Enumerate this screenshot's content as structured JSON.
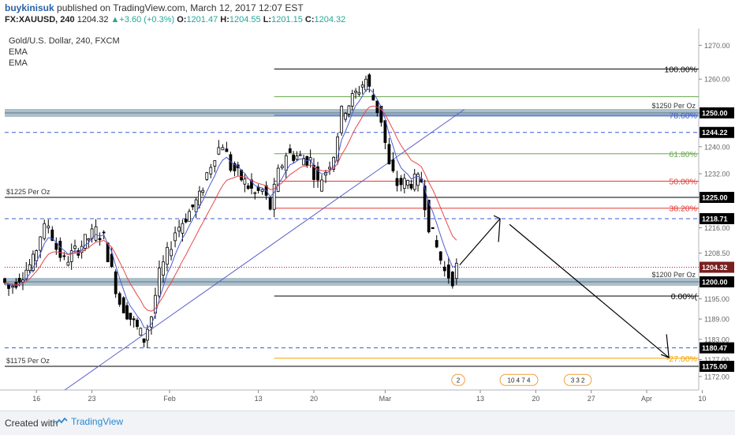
{
  "header": {
    "author": "buykinisuk",
    "published_text": "published on TradingView.com, March 12, 2017 12:07 EST",
    "symbol": "FX:XAUUSD, 240",
    "last": "1204.32",
    "change": "+3.60 (+0.3%)",
    "open_label": "O:",
    "open": "1201.47",
    "high_label": "H:",
    "high": "1204.55",
    "low_label": "L:",
    "low": "1201.15",
    "close_label": "C:",
    "close": "1204.32"
  },
  "legend": {
    "title": "Gold/U.S. Dollar, 240, FXCM",
    "ema1": "EMA",
    "ema2": "EMA"
  },
  "footer": {
    "created_with": "Created with",
    "brand": "TradingView"
  },
  "colors": {
    "up_candle": "#ffffff",
    "down_candle": "#000000",
    "ema_fast": "#4a5bd4",
    "ema_slow": "#e8474a",
    "fib_black": "#000000",
    "fib_green": "#6aa84f",
    "fib_red": "#e53935",
    "fib_blue": "#3d5ad6",
    "fib_orange": "#f4a300",
    "zone": "#9db4c2"
  },
  "chart_data": {
    "type": "candlestick",
    "symbol": "Gold/U.S. Dollar, 240, FXCM",
    "x_ticks": [
      "16",
      "23",
      "Feb",
      "13",
      "20",
      "Mar",
      "13",
      "20",
      "27",
      "Apr",
      "10"
    ],
    "y_ticks": [
      1270.0,
      1260.0,
      1250.0,
      1240.0,
      1232.0,
      1225.0,
      1216.0,
      1208.5,
      1200.0,
      1195.0,
      1189.0,
      1183.0,
      1177.0,
      1172.0
    ],
    "ylim": [
      1168,
      1275
    ],
    "series_path": [
      {
        "x": "Jan 12",
        "y": 1201
      },
      {
        "x": "Jan 13",
        "y": 1198
      },
      {
        "x": "Jan 16",
        "y": 1206
      },
      {
        "x": "Jan 17",
        "y": 1214
      },
      {
        "x": "Jan 18",
        "y": 1217
      },
      {
        "x": "Jan 19",
        "y": 1210
      },
      {
        "x": "Jan 20",
        "y": 1206
      },
      {
        "x": "Jan 23",
        "y": 1213
      },
      {
        "x": "Jan 24",
        "y": 1215
      },
      {
        "x": "Jan 25",
        "y": 1213
      },
      {
        "x": "Jan 26",
        "y": 1203
      },
      {
        "x": "Jan 27",
        "y": 1194
      },
      {
        "x": "Jan 30",
        "y": 1183
      },
      {
        "x": "Jan 31",
        "y": 1190
      },
      {
        "x": "Feb 1",
        "y": 1202
      },
      {
        "x": "Feb 2",
        "y": 1208
      },
      {
        "x": "Feb 3",
        "y": 1215
      },
      {
        "x": "Feb 6",
        "y": 1225
      },
      {
        "x": "Feb 7",
        "y": 1232
      },
      {
        "x": "Feb 8",
        "y": 1238
      },
      {
        "x": "Feb 9",
        "y": 1241
      },
      {
        "x": "Feb 10",
        "y": 1234
      },
      {
        "x": "Feb 13",
        "y": 1226
      },
      {
        "x": "Feb 14",
        "y": 1227
      },
      {
        "x": "Feb 15",
        "y": 1222
      },
      {
        "x": "Feb 16",
        "y": 1232
      },
      {
        "x": "Feb 17",
        "y": 1238
      },
      {
        "x": "Feb 20",
        "y": 1236
      },
      {
        "x": "Feb 21",
        "y": 1229
      },
      {
        "x": "Feb 22",
        "y": 1233
      },
      {
        "x": "Feb 23",
        "y": 1238
      },
      {
        "x": "Feb 24",
        "y": 1250
      },
      {
        "x": "Feb 27",
        "y": 1260
      },
      {
        "x": "Feb 28",
        "y": 1254
      },
      {
        "x": "Mar 1",
        "y": 1248
      },
      {
        "x": "Mar 2",
        "y": 1234
      },
      {
        "x": "Mar 3",
        "y": 1229
      },
      {
        "x": "Mar 6",
        "y": 1230
      },
      {
        "x": "Mar 7",
        "y": 1217
      },
      {
        "x": "Mar 8",
        "y": 1210
      },
      {
        "x": "Mar 9",
        "y": 1203
      },
      {
        "x": "Mar 10",
        "y": 1201
      },
      {
        "x": "Mar 10",
        "y": 1204.32
      }
    ],
    "levels": [
      {
        "label": "100.00%",
        "value": 1263.0,
        "color": "#000000"
      },
      {
        "label": "",
        "value": 1254.8,
        "color": "#6aa84f"
      },
      {
        "label": "78.60%",
        "value": 1249.3,
        "color": "#3d5ad6"
      },
      {
        "label": "61.80%",
        "value": 1237.9,
        "color": "#6aa84f"
      },
      {
        "label": "50.00%",
        "value": 1229.8,
        "color": "#e53935"
      },
      {
        "label": "38.20%",
        "value": 1221.8,
        "color": "#e53935"
      },
      {
        "label": "0.00%(",
        "value": 1195.8,
        "color": "#000000"
      },
      {
        "label": "-27.00%",
        "value": 1177.4,
        "color": "#f4a300"
      }
    ],
    "zones": [
      {
        "label": "$1250 Per Oz",
        "value": 1250.0
      },
      {
        "label": "$1200 Per Oz",
        "value": 1200.0
      }
    ],
    "hlines": [
      {
        "label": "$1225 Per Oz",
        "value": 1225.0,
        "color": "#000000"
      },
      {
        "label": "$1175 Per Oz",
        "value": 1175.0,
        "color": "#000000"
      },
      {
        "label": "",
        "value": 1244.22,
        "color": "#3d5ad6",
        "dash": true
      },
      {
        "label": "",
        "value": 1218.71,
        "color": "#3d5ad6",
        "dash": true
      },
      {
        "label": "",
        "value": 1180.47,
        "color": "#3d5ad6",
        "dash": true
      },
      {
        "label": "",
        "value": 1204.32,
        "color": "#b71c1c",
        "dot": true
      }
    ],
    "price_tags": [
      {
        "text": "1250.00",
        "value": 1250.0
      },
      {
        "text": "1244.22",
        "value": 1244.22
      },
      {
        "text": "1225.00",
        "value": 1225.0
      },
      {
        "text": "1218.71",
        "value": 1218.71
      },
      {
        "text": "1204.32",
        "value": 1204.32,
        "bg": "#7a1e1e"
      },
      {
        "text": "1200.00",
        "value": 1200.0
      },
      {
        "text": "1180.47",
        "value": 1180.47
      },
      {
        "text": "1175.00",
        "value": 1175.0
      }
    ],
    "event_badges": [
      {
        "text": "2"
      },
      {
        "text": "10 4 7 4"
      },
      {
        "text": "3 3 2"
      }
    ]
  }
}
